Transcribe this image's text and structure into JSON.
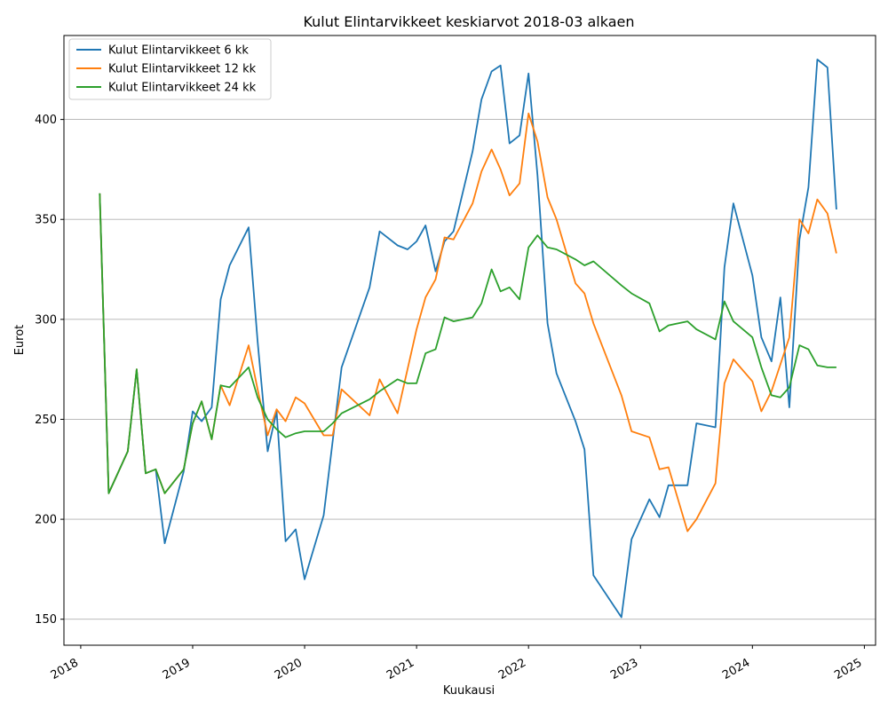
{
  "chart_data": {
    "type": "line",
    "title": "Kulut Elintarvikkeet keskiarvot 2018-03 alkaen",
    "xlabel": "Kuukausi",
    "ylabel": "Eurot",
    "x_range_years": [
      2017.85,
      2025.1
    ],
    "ylim": [
      137,
      442
    ],
    "x_ticks": [
      2018,
      2019,
      2020,
      2021,
      2022,
      2023,
      2024,
      2025
    ],
    "x_tick_labels": [
      "2018",
      "2019",
      "2020",
      "2021",
      "2022",
      "2023",
      "2024",
      "2025"
    ],
    "y_ticks": [
      150,
      200,
      250,
      300,
      350,
      400
    ],
    "y_tick_labels": [
      "150",
      "200",
      "250",
      "300",
      "350",
      "400"
    ],
    "grid": "horizontal",
    "legend_position": "top-left",
    "series": [
      {
        "name": "Kulut Elintarvikkeet 6 kk",
        "color": "#1f77b4",
        "points": [
          [
            2018.17,
            363
          ],
          [
            2018.25,
            213
          ],
          [
            2018.42,
            234
          ],
          [
            2018.5,
            275
          ],
          [
            2018.58,
            223
          ],
          [
            2018.67,
            225
          ],
          [
            2018.75,
            188
          ],
          [
            2018.92,
            224
          ],
          [
            2019.0,
            254
          ],
          [
            2019.08,
            249
          ],
          [
            2019.17,
            256
          ],
          [
            2019.25,
            310
          ],
          [
            2019.33,
            327
          ],
          [
            2019.5,
            346
          ],
          [
            2019.58,
            289
          ],
          [
            2019.67,
            234
          ],
          [
            2019.75,
            254
          ],
          [
            2019.83,
            189
          ],
          [
            2019.92,
            195
          ],
          [
            2020.0,
            170
          ],
          [
            2020.17,
            202
          ],
          [
            2020.33,
            276
          ],
          [
            2020.58,
            316
          ],
          [
            2020.67,
            344
          ],
          [
            2020.83,
            337
          ],
          [
            2020.92,
            335
          ],
          [
            2021.0,
            339
          ],
          [
            2021.08,
            347
          ],
          [
            2021.17,
            324
          ],
          [
            2021.25,
            339
          ],
          [
            2021.33,
            344
          ],
          [
            2021.5,
            384
          ],
          [
            2021.58,
            410
          ],
          [
            2021.67,
            424
          ],
          [
            2021.75,
            427
          ],
          [
            2021.83,
            388
          ],
          [
            2021.92,
            392
          ],
          [
            2022.0,
            423
          ],
          [
            2022.08,
            372
          ],
          [
            2022.17,
            298
          ],
          [
            2022.25,
            273
          ],
          [
            2022.42,
            249
          ],
          [
            2022.5,
            235
          ],
          [
            2022.58,
            172
          ],
          [
            2022.83,
            151
          ],
          [
            2022.92,
            190
          ],
          [
            2023.08,
            210
          ],
          [
            2023.17,
            201
          ],
          [
            2023.25,
            217
          ],
          [
            2023.42,
            217
          ],
          [
            2023.5,
            248
          ],
          [
            2023.67,
            246
          ],
          [
            2023.75,
            326
          ],
          [
            2023.83,
            358
          ],
          [
            2024.0,
            322
          ],
          [
            2024.08,
            291
          ],
          [
            2024.17,
            279
          ],
          [
            2024.25,
            311
          ],
          [
            2024.33,
            256
          ],
          [
            2024.42,
            340
          ],
          [
            2024.5,
            366
          ],
          [
            2024.58,
            430
          ],
          [
            2024.67,
            426
          ],
          [
            2024.75,
            355
          ]
        ]
      },
      {
        "name": "Kulut Elintarvikkeet 12 kk",
        "color": "#ff7f0e",
        "points": [
          [
            2018.17,
            363
          ],
          [
            2018.25,
            213
          ],
          [
            2018.42,
            234
          ],
          [
            2018.5,
            275
          ],
          [
            2018.58,
            223
          ],
          [
            2018.67,
            225
          ],
          [
            2018.75,
            213
          ],
          [
            2018.92,
            225
          ],
          [
            2019.0,
            248
          ],
          [
            2019.08,
            259
          ],
          [
            2019.17,
            240
          ],
          [
            2019.25,
            267
          ],
          [
            2019.33,
            257
          ],
          [
            2019.5,
            287
          ],
          [
            2019.58,
            265
          ],
          [
            2019.67,
            242
          ],
          [
            2019.75,
            255
          ],
          [
            2019.83,
            249
          ],
          [
            2019.92,
            261
          ],
          [
            2020.0,
            258
          ],
          [
            2020.17,
            242
          ],
          [
            2020.25,
            242
          ],
          [
            2020.33,
            265
          ],
          [
            2020.58,
            252
          ],
          [
            2020.67,
            270
          ],
          [
            2020.83,
            253
          ],
          [
            2021.0,
            295
          ],
          [
            2021.08,
            311
          ],
          [
            2021.17,
            320
          ],
          [
            2021.25,
            341
          ],
          [
            2021.33,
            340
          ],
          [
            2021.5,
            358
          ],
          [
            2021.58,
            374
          ],
          [
            2021.67,
            385
          ],
          [
            2021.75,
            375
          ],
          [
            2021.83,
            362
          ],
          [
            2021.92,
            368
          ],
          [
            2022.0,
            403
          ],
          [
            2022.08,
            389
          ],
          [
            2022.17,
            361
          ],
          [
            2022.25,
            350
          ],
          [
            2022.42,
            318
          ],
          [
            2022.5,
            313
          ],
          [
            2022.58,
            298
          ],
          [
            2022.83,
            262
          ],
          [
            2022.92,
            244
          ],
          [
            2023.08,
            241
          ],
          [
            2023.17,
            225
          ],
          [
            2023.25,
            226
          ],
          [
            2023.42,
            194
          ],
          [
            2023.5,
            200
          ],
          [
            2023.67,
            218
          ],
          [
            2023.75,
            268
          ],
          [
            2023.83,
            280
          ],
          [
            2024.0,
            269
          ],
          [
            2024.08,
            254
          ],
          [
            2024.17,
            264
          ],
          [
            2024.33,
            291
          ],
          [
            2024.42,
            350
          ],
          [
            2024.5,
            343
          ],
          [
            2024.58,
            360
          ],
          [
            2024.67,
            353
          ],
          [
            2024.75,
            333
          ]
        ]
      },
      {
        "name": "Kulut Elintarvikkeet 24 kk",
        "color": "#2ca02c",
        "points": [
          [
            2018.17,
            363
          ],
          [
            2018.25,
            213
          ],
          [
            2018.42,
            234
          ],
          [
            2018.5,
            275
          ],
          [
            2018.58,
            223
          ],
          [
            2018.67,
            225
          ],
          [
            2018.75,
            213
          ],
          [
            2018.92,
            225
          ],
          [
            2019.0,
            248
          ],
          [
            2019.08,
            259
          ],
          [
            2019.17,
            240
          ],
          [
            2019.25,
            267
          ],
          [
            2019.33,
            266
          ],
          [
            2019.5,
            276
          ],
          [
            2019.58,
            261
          ],
          [
            2019.67,
            250
          ],
          [
            2019.75,
            245
          ],
          [
            2019.83,
            241
          ],
          [
            2019.92,
            243
          ],
          [
            2020.0,
            244
          ],
          [
            2020.17,
            244
          ],
          [
            2020.25,
            248
          ],
          [
            2020.33,
            253
          ],
          [
            2020.58,
            260
          ],
          [
            2020.67,
            264
          ],
          [
            2020.83,
            270
          ],
          [
            2020.92,
            268
          ],
          [
            2021.0,
            268
          ],
          [
            2021.08,
            283
          ],
          [
            2021.17,
            285
          ],
          [
            2021.25,
            301
          ],
          [
            2021.33,
            299
          ],
          [
            2021.5,
            301
          ],
          [
            2021.58,
            308
          ],
          [
            2021.67,
            325
          ],
          [
            2021.75,
            314
          ],
          [
            2021.83,
            316
          ],
          [
            2021.92,
            310
          ],
          [
            2022.0,
            336
          ],
          [
            2022.08,
            342
          ],
          [
            2022.17,
            336
          ],
          [
            2022.25,
            335
          ],
          [
            2022.42,
            330
          ],
          [
            2022.5,
            327
          ],
          [
            2022.58,
            329
          ],
          [
            2022.83,
            317
          ],
          [
            2022.92,
            313
          ],
          [
            2023.08,
            308
          ],
          [
            2023.17,
            294
          ],
          [
            2023.25,
            297
          ],
          [
            2023.42,
            299
          ],
          [
            2023.5,
            295
          ],
          [
            2023.67,
            290
          ],
          [
            2023.75,
            309
          ],
          [
            2023.83,
            299
          ],
          [
            2024.0,
            291
          ],
          [
            2024.08,
            276
          ],
          [
            2024.17,
            262
          ],
          [
            2024.25,
            261
          ],
          [
            2024.33,
            266
          ],
          [
            2024.42,
            287
          ],
          [
            2024.5,
            285
          ],
          [
            2024.58,
            277
          ],
          [
            2024.67,
            276
          ],
          [
            2024.75,
            276
          ]
        ]
      }
    ]
  }
}
